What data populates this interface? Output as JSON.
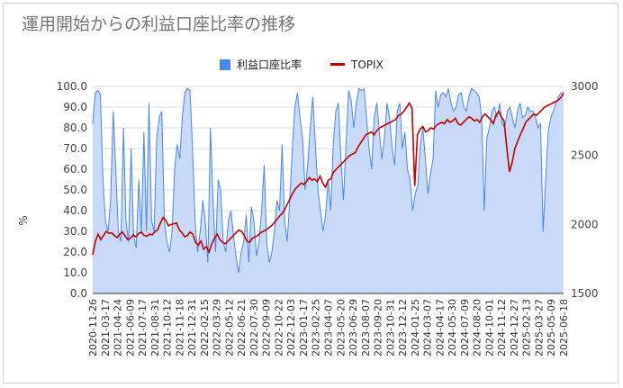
{
  "title": "運用開始からの利益口座比率の推移",
  "legend": {
    "series1": "利益口座比率",
    "series2": "TOPIX"
  },
  "colors": {
    "area_fill": "#c9daf8",
    "area_line": "#4a86e8",
    "topix_line": "#c00000",
    "grid": "#dcdcdc"
  },
  "chart_data": {
    "type": "area",
    "ylabel": "%",
    "ylim": [
      0,
      100
    ],
    "ylim_right": [
      1500,
      3000
    ],
    "y_ticks": [
      "0.0",
      "10.0",
      "20.0",
      "30.0",
      "40.0",
      "50.0",
      "60.0",
      "70.0",
      "80.0",
      "90.0",
      "100.0"
    ],
    "y_ticks_right": [
      "1500",
      "2000",
      "2500",
      "3000"
    ],
    "x_ticks": [
      "2020-11-26",
      "2021-03-17",
      "2021-04-24",
      "2021-06-09",
      "2021-07-17",
      "2021-08-31",
      "2021-10-12",
      "2021-11-18",
      "2021-12-31",
      "2022-02-15",
      "2022-03-29",
      "2022-05-12",
      "2022-06-21",
      "2022-07-30",
      "2022-09-09",
      "2022-10-22",
      "2022-12-03",
      "2023-01-17",
      "2023-02-25",
      "2023-04-07",
      "2023-05-20",
      "2023-06-29",
      "2023-08-07",
      "2023-09-20",
      "2023-10-31",
      "2023-12-12",
      "2024-01-25",
      "2024-03-07",
      "2024-04-17",
      "2024-05-30",
      "2024-07-09",
      "2024-08-20",
      "2024-10-01",
      "2024-11-12",
      "2024-12-27",
      "2025-02-13",
      "2025-03-27",
      "2025-05-09",
      "2025-06-18"
    ],
    "series": [
      {
        "name": "利益口座比率",
        "values": [
          82,
          97,
          98,
          96,
          55,
          35,
          30,
          45,
          88,
          60,
          30,
          25,
          80,
          35,
          25,
          70,
          28,
          22,
          55,
          30,
          78,
          30,
          92,
          35,
          30,
          75,
          85,
          88,
          35,
          25,
          20,
          30,
          60,
          72,
          65,
          85,
          97,
          99,
          98,
          70,
          35,
          20,
          30,
          45,
          35,
          15,
          80,
          45,
          20,
          55,
          50,
          25,
          20,
          35,
          40,
          28,
          18,
          10,
          20,
          25,
          38,
          15,
          42,
          35,
          18,
          25,
          40,
          62,
          25,
          15,
          20,
          30,
          45,
          40,
          72,
          35,
          25,
          45,
          70,
          90,
          97,
          85,
          75,
          50,
          62,
          80,
          95,
          72,
          50,
          40,
          30,
          38,
          55,
          40,
          72,
          88,
          92,
          65,
          45,
          72,
          98,
          93,
          80,
          92,
          99,
          98,
          99,
          85,
          70,
          60,
          85,
          92,
          78,
          65,
          75,
          92,
          85,
          70,
          62,
          88,
          92,
          70,
          78,
          60,
          55,
          40,
          48,
          52,
          72,
          80,
          65,
          48,
          58,
          65,
          98,
          90,
          96,
          97,
          95,
          99,
          92,
          88,
          90,
          96,
          97,
          90,
          88,
          95,
          99,
          98,
          97,
          95,
          85,
          40,
          75,
          80,
          88,
          90,
          85,
          92,
          82,
          80,
          88,
          90,
          85,
          80,
          88,
          92,
          85,
          86,
          90,
          88,
          88,
          85,
          80,
          82,
          30,
          55,
          78,
          85,
          88,
          92,
          95,
          97,
          97
        ]
      },
      {
        "name": "TOPIX",
        "values": [
          1780,
          1880,
          1930,
          1890,
          1920,
          1950,
          1935,
          1940,
          1920,
          1905,
          1930,
          1945,
          1915,
          1890,
          1900,
          1925,
          1910,
          1935,
          1945,
          1920,
          1915,
          1930,
          1925,
          1950,
          1960,
          2010,
          2050,
          2030,
          1990,
          2000,
          2005,
          2010,
          1960,
          1940,
          1910,
          1920,
          1945,
          1930,
          1870,
          1850,
          1880,
          1820,
          1840,
          1800,
          1860,
          1900,
          1930,
          1890,
          1870,
          1860,
          1880,
          1900,
          1920,
          1940,
          1960,
          1950,
          1920,
          1880,
          1870,
          1900,
          1910,
          1920,
          1940,
          1950,
          1960,
          1975,
          1990,
          2010,
          2035,
          2060,
          2080,
          2110,
          2150,
          2190,
          2230,
          2260,
          2280,
          2300,
          2290,
          2310,
          2340,
          2320,
          2330,
          2310,
          2350,
          2300,
          2270,
          2320,
          2330,
          2380,
          2400,
          2420,
          2440,
          2460,
          2480,
          2500,
          2510,
          2520,
          2560,
          2590,
          2620,
          2650,
          2660,
          2670,
          2650,
          2680,
          2700,
          2710,
          2720,
          2730,
          2740,
          2750,
          2760,
          2790,
          2800,
          2820,
          2850,
          2880,
          2840,
          2280,
          2650,
          2690,
          2710,
          2670,
          2680,
          2700,
          2690,
          2720,
          2730,
          2740,
          2730,
          2760,
          2740,
          2750,
          2770,
          2730,
          2720,
          2740,
          2760,
          2780,
          2770,
          2750,
          2760,
          2740,
          2780,
          2800,
          2780,
          2760,
          2730,
          2790,
          2820,
          2780,
          2750,
          2560,
          2380,
          2450,
          2550,
          2600,
          2650,
          2690,
          2740,
          2760,
          2780,
          2800,
          2790,
          2810,
          2830,
          2850,
          2860,
          2870,
          2880,
          2890,
          2900,
          2920,
          2950
        ]
      }
    ]
  }
}
